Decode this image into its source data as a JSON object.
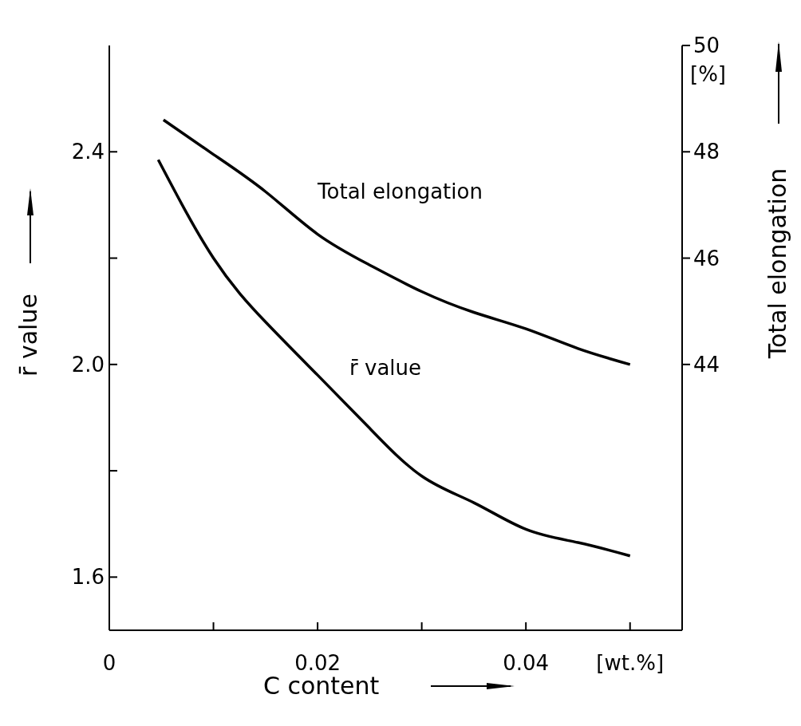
{
  "chart_data": {
    "type": "line",
    "xlabel": "C content",
    "ylabel": "r̄ value",
    "y2label": "Total elongation",
    "annotations": [
      "[%]"
    ],
    "xlim": [
      0,
      0.055
    ],
    "xticks": [
      0,
      {
        "value": 0.01,
        "label": null
      },
      {
        "value": 0.02,
        "label": "0.02"
      },
      {
        "value": 0.03,
        "label": null
      },
      {
        "value": 0.04,
        "label": "0.04"
      },
      {
        "value": 0.05,
        "label": "[wt.%]"
      }
    ],
    "ylim": [
      1.5,
      2.6
    ],
    "yticks": [
      {
        "value": 1.6,
        "label": "1.6"
      },
      {
        "value": 1.8,
        "label": null
      },
      {
        "value": 2.0,
        "label": "2.0"
      },
      {
        "value": 2.2,
        "label": null
      },
      {
        "value": 2.4,
        "label": "2.4"
      }
    ],
    "y2lim": [
      39,
      50
    ],
    "y2ticks": [
      44,
      46,
      48,
      50
    ],
    "grid": false,
    "marker": "none",
    "line_style": "solid",
    "series": [
      {
        "name": "Total elongation",
        "color": "#000000",
        "axis": "y2",
        "x": [
          0.0052,
          0.01,
          0.015,
          0.02,
          0.025,
          0.03,
          0.035,
          0.04,
          0.045,
          0.05
        ],
        "values": [
          48.6,
          47.95,
          47.25,
          46.45,
          45.87,
          45.37,
          44.98,
          44.67,
          44.3,
          44.0
        ]
      },
      {
        "name": "r̄ value",
        "color": "#000000",
        "x": [
          0.0047,
          0.01,
          0.015,
          0.02,
          0.025,
          0.03,
          0.035,
          0.04,
          0.045,
          0.05
        ],
        "values": [
          2.385,
          2.2,
          2.08,
          1.98,
          1.88,
          1.79,
          1.74,
          1.69,
          1.665,
          1.64
        ]
      }
    ]
  }
}
